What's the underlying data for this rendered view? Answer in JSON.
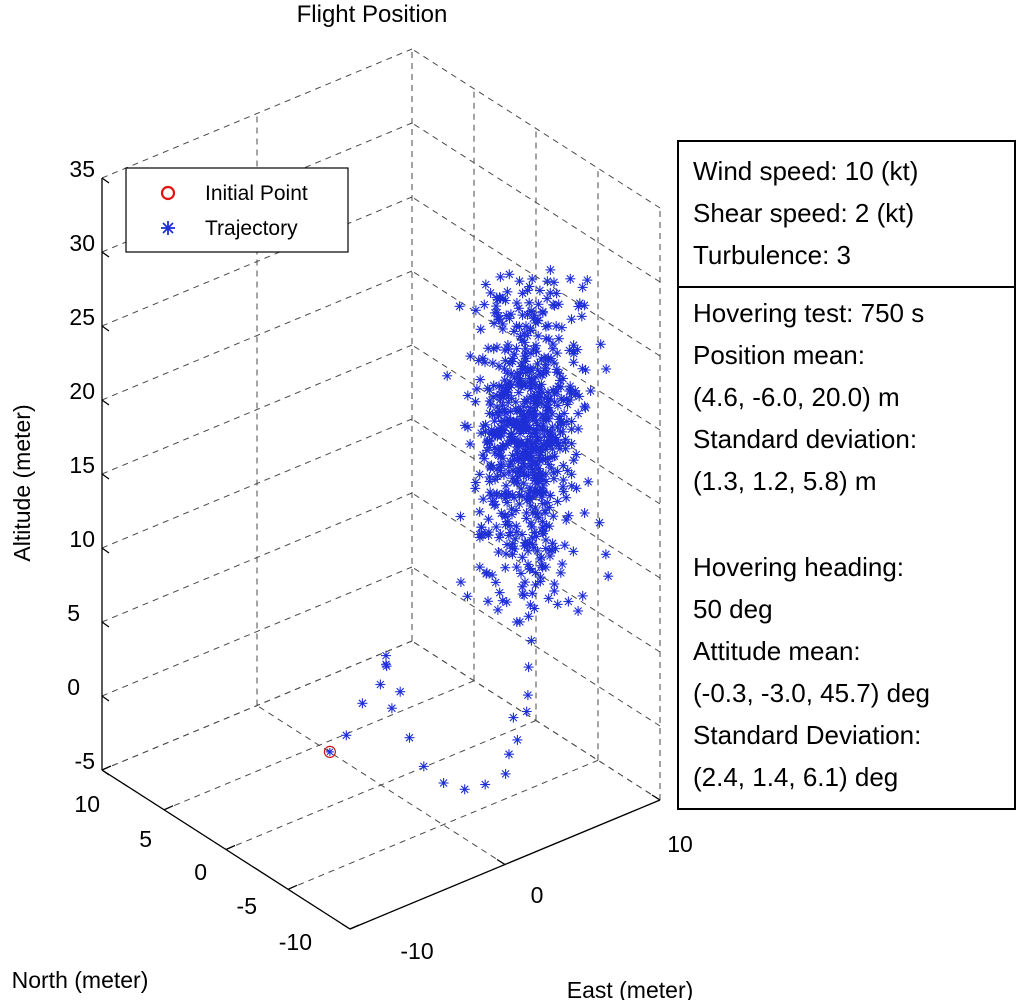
{
  "chart_data": {
    "type": "scatter3d",
    "title": "Flight Position",
    "xlabel": "East (meter)",
    "ylabel": "North (meter)",
    "zlabel": "Altitude (meter)",
    "xlim": [
      -10,
      10
    ],
    "ylim": [
      -10,
      10
    ],
    "zlim": [
      -5,
      35
    ],
    "x_ticks": [
      "-10",
      "0",
      "10"
    ],
    "y_ticks": [
      "10",
      "5",
      "0",
      "-5",
      "-10"
    ],
    "z_ticks": [
      "35",
      "30",
      "25",
      "20",
      "15",
      "10",
      "5",
      "0",
      "-5"
    ],
    "grid": true,
    "legend": {
      "location": "top-left",
      "entries": [
        {
          "label": "Initial Point",
          "marker": "o",
          "color": "#e3140f"
        },
        {
          "label": "Trajectory",
          "marker": "*",
          "color": "#1f2fd6"
        }
      ]
    },
    "series": [
      {
        "name": "Initial Point",
        "marker": "o",
        "color": "#e3140f",
        "points": [
          {
            "x": -4.5,
            "y": -1.5,
            "z": 0.0
          }
        ]
      },
      {
        "name": "Trajectory",
        "marker": "*",
        "color": "#1f2fd6",
        "num_points": 760,
        "seed": 20240517,
        "hover_phase": {
          "mean": {
            "x": 4.6,
            "y": -6.0,
            "z": 20.0
          },
          "std": {
            "x": 1.3,
            "y": 1.2,
            "z": 5.8
          }
        },
        "takeoff_path": [
          {
            "x": -3.2,
            "y": -1.2,
            "z": 0.4
          },
          {
            "x": -0.8,
            "y": 0.5,
            "z": 0.6
          },
          {
            "x": 0.6,
            "y": 0.8,
            "z": 1.1
          },
          {
            "x": 1.6,
            "y": 1.6,
            "z": 1.6
          },
          {
            "x": 2.4,
            "y": 2.6,
            "z": 1.3
          },
          {
            "x": 2.6,
            "y": 2.8,
            "z": 0.4
          },
          {
            "x": 2.2,
            "y": 1.2,
            "z": -0.3
          },
          {
            "x": 1.5,
            "y": 1.0,
            "z": -1.0
          },
          {
            "x": 1.2,
            "y": -0.8,
            "z": -1.9
          },
          {
            "x": 1.0,
            "y": -2.2,
            "z": -3.0
          },
          {
            "x": 1.4,
            "y": -3.3,
            "z": -3.7
          },
          {
            "x": 2.2,
            "y": -4.0,
            "z": -4.1
          },
          {
            "x": 3.2,
            "y": -4.4,
            "z": -4.0
          },
          {
            "x": 4.2,
            "y": -4.8,
            "z": -3.5
          },
          {
            "x": 4.9,
            "y": -4.2,
            "z": -2.8
          },
          {
            "x": 5.2,
            "y": -4.5,
            "z": -1.8
          },
          {
            "x": 5.5,
            "y": -3.8,
            "z": -0.8
          },
          {
            "x": 5.4,
            "y": -5.0,
            "z": 0.3
          },
          {
            "x": 5.0,
            "y": -5.6,
            "z": 1.9
          },
          {
            "x": 5.2,
            "y": -5.4,
            "z": 3.6
          },
          {
            "x": 5.3,
            "y": -5.5,
            "z": 5.4
          },
          {
            "x": 4.6,
            "y": -5.2,
            "z": 6.8
          },
          {
            "x": 5.0,
            "y": -5.8,
            "z": 8.1
          }
        ]
      }
    ]
  },
  "info_box": {
    "wind_section": [
      "Wind speed: 10 (kt)",
      "Shear speed: 2 (kt)",
      "Turbulence: 3"
    ],
    "test_section": [
      "Hovering test: 750 s",
      "Position mean:",
      "(4.6, -6.0, 20.0) m",
      "Standard deviation:",
      "(1.3, 1.2, 5.8) m",
      "",
      "Hovering heading:",
      "50 deg",
      "Attitude mean:",
      "(-0.3, -3.0, 45.7) deg",
      "Standard Deviation:",
      "(2.4, 1.4, 6.1) deg"
    ]
  }
}
